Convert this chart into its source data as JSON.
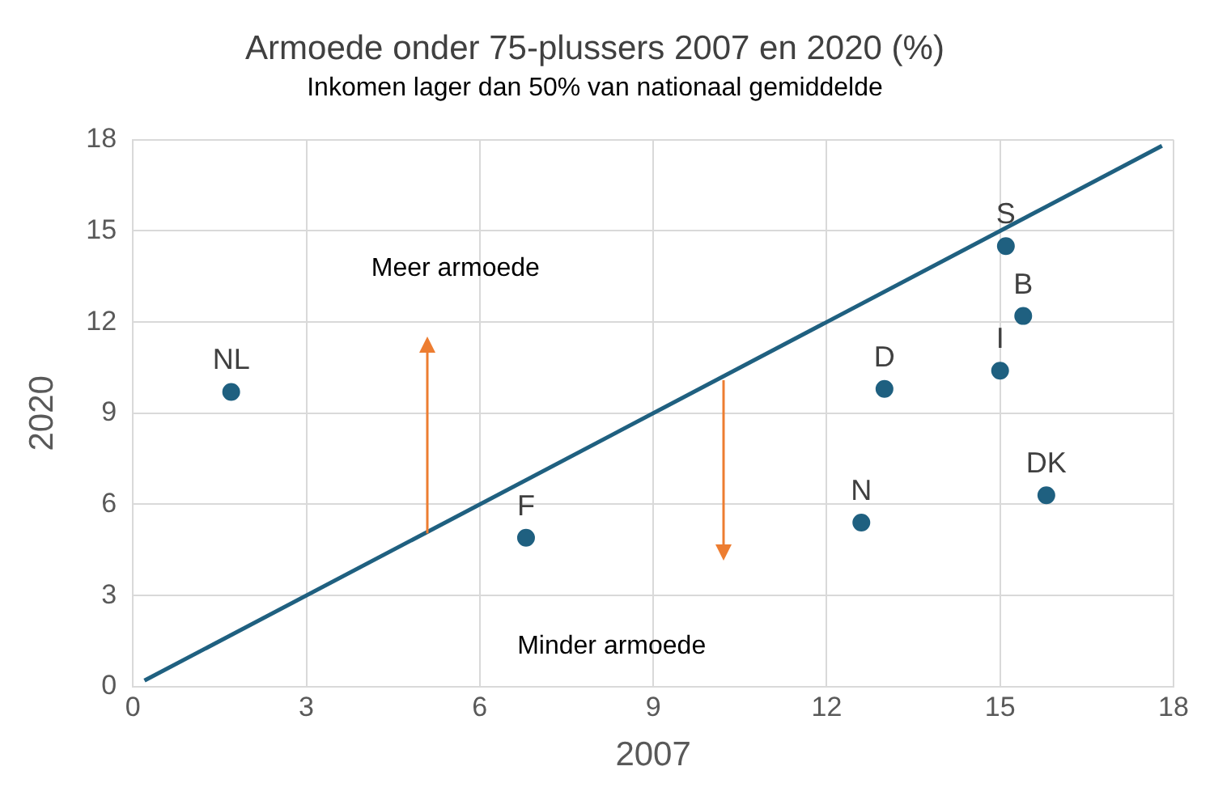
{
  "chart_data": {
    "type": "scatter",
    "title": "Armoede onder 75-plussers 2007 en 2020 (%)",
    "subtitle": "Inkomen lager dan 50% van nationaal gemiddelde",
    "xlabel": "2007",
    "ylabel": "2020",
    "xlim": [
      0,
      18
    ],
    "xticks": [
      0,
      3,
      6,
      9,
      12,
      15,
      18
    ],
    "ylim": [
      0,
      18
    ],
    "yticks": [
      0,
      3,
      6,
      9,
      12,
      15,
      18
    ],
    "grid": true,
    "legend": false,
    "marker": "circle",
    "series": [
      {
        "name": "NL",
        "color": "#1f6080",
        "x": [
          1.7
        ],
        "values": [
          9.7
        ]
      },
      {
        "name": "F",
        "color": "#1f6080",
        "x": [
          6.8
        ],
        "values": [
          4.9
        ]
      },
      {
        "name": "N",
        "color": "#1f6080",
        "x": [
          12.6
        ],
        "values": [
          5.4
        ]
      },
      {
        "name": "D",
        "color": "#1f6080",
        "x": [
          13.0
        ],
        "values": [
          9.8
        ]
      },
      {
        "name": "I",
        "color": "#1f6080",
        "x": [
          15.0
        ],
        "values": [
          10.4
        ]
      },
      {
        "name": "B",
        "color": "#1f6080",
        "x": [
          15.4
        ],
        "values": [
          12.2
        ]
      },
      {
        "name": "S",
        "color": "#1f6080",
        "x": [
          15.1
        ],
        "values": [
          14.5
        ]
      },
      {
        "name": "DK",
        "color": "#1f6080",
        "x": [
          15.8
        ],
        "values": [
          6.3
        ]
      },
      {
        "type": "line",
        "color": "#1f6080",
        "x": [
          0.2,
          17.8
        ],
        "values": [
          0.2,
          17.8
        ],
        "marker": "none",
        "line_style": "solid"
      }
    ],
    "annotations": [
      "Meer armoede",
      "Minder armoede"
    ]
  }
}
